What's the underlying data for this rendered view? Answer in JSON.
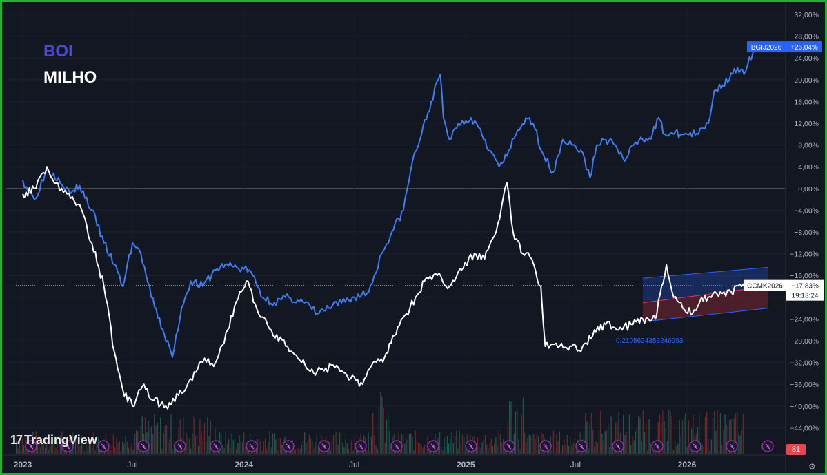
{
  "legend": {
    "boi": "BOI",
    "milho": "MILHO"
  },
  "branding": {
    "logo_text": "TradingView",
    "logo_mark": "17"
  },
  "labels": {
    "bgi": "BGIJ2026",
    "bgi_value": "+26,04%",
    "ccm": "CCMK2026",
    "ccm_value": "−17,83%",
    "countdown": "19:13:24",
    "channel_value": "0.2105624353246993",
    "volume_badge": "81"
  },
  "colors": {
    "background": "#131722",
    "boi": "#3d7ef5",
    "milho": "#ffffff",
    "frame": "#1db232",
    "channel_blue": "#1f3a7a",
    "channel_red": "#5c1f2a"
  },
  "icons": {
    "event_marker": "lightning-icon",
    "settings": "gear-icon"
  },
  "chart_data": {
    "type": "line",
    "x_tick_labels": [
      "2023",
      "Jul",
      "2024",
      "Jul",
      "2025",
      "Jul",
      "2026"
    ],
    "y_tick_labels": [
      "32,00%",
      "28,00%",
      "24,00%",
      "20,00%",
      "16,00%",
      "12,00%",
      "8,00%",
      "4,00%",
      "0,00%",
      "−4,00%",
      "−8,00%",
      "−12,00%",
      "−16,00%",
      "−20,00%",
      "−24,00%",
      "−28,00%",
      "−32,00%",
      "−36,00%",
      "−40,00%",
      "−44,00%"
    ],
    "ylim": [
      -48,
      33
    ],
    "y_scale_percent": true,
    "series": [
      {
        "name": "BGIJ2026",
        "color": "#3d7ef5",
        "points": [
          [
            "2023-01-01",
            1.5
          ],
          [
            "2023-01-20",
            -2
          ],
          [
            "2023-02-10",
            3.5
          ],
          [
            "2023-03-01",
            2
          ],
          [
            "2023-03-20",
            -1
          ],
          [
            "2023-04-05",
            0.5
          ],
          [
            "2023-04-25",
            -4
          ],
          [
            "2023-05-15",
            -10
          ],
          [
            "2023-06-01",
            -14
          ],
          [
            "2023-06-15",
            -18
          ],
          [
            "2023-07-01",
            -10
          ],
          [
            "2023-07-15",
            -12
          ],
          [
            "2023-08-01",
            -20
          ],
          [
            "2023-08-20",
            -26
          ],
          [
            "2023-09-05",
            -31
          ],
          [
            "2023-09-20",
            -22
          ],
          [
            "2023-10-05",
            -17
          ],
          [
            "2023-10-25",
            -18
          ],
          [
            "2023-11-15",
            -15
          ],
          [
            "2023-12-01",
            -14
          ],
          [
            "2023-12-20",
            -14.5
          ],
          [
            "2024-01-10",
            -15
          ],
          [
            "2024-02-01",
            -20
          ],
          [
            "2024-02-20",
            -21
          ],
          [
            "2024-03-15",
            -20
          ],
          [
            "2024-04-10",
            -21
          ],
          [
            "2024-05-01",
            -23
          ],
          [
            "2024-05-20",
            -22
          ],
          [
            "2024-06-10",
            -21
          ],
          [
            "2024-07-01",
            -20
          ],
          [
            "2024-07-25",
            -19
          ],
          [
            "2024-08-15",
            -12
          ],
          [
            "2024-09-01",
            -8
          ],
          [
            "2024-09-20",
            -4
          ],
          [
            "2024-10-05",
            5
          ],
          [
            "2024-10-20",
            10
          ],
          [
            "2024-11-05",
            16
          ],
          [
            "2024-11-20",
            21
          ],
          [
            "2024-11-25",
            13
          ],
          [
            "2024-12-05",
            9
          ],
          [
            "2024-12-20",
            12
          ],
          [
            "2025-01-10",
            13
          ],
          [
            "2025-01-25",
            11
          ],
          [
            "2025-02-10",
            7
          ],
          [
            "2025-02-25",
            4
          ],
          [
            "2025-03-10",
            6
          ],
          [
            "2025-03-25",
            10
          ],
          [
            "2025-04-10",
            13
          ],
          [
            "2025-04-25",
            11
          ],
          [
            "2025-05-10",
            6
          ],
          [
            "2025-05-25",
            3
          ],
          [
            "2025-06-10",
            9
          ],
          [
            "2025-06-25",
            8
          ],
          [
            "2025-07-10",
            7
          ],
          [
            "2025-07-25",
            2
          ],
          [
            "2025-08-05",
            8
          ],
          [
            "2025-08-20",
            9
          ],
          [
            "2025-09-05",
            8
          ],
          [
            "2025-09-20",
            5
          ],
          [
            "2025-10-05",
            8
          ],
          [
            "2025-10-20",
            9
          ],
          [
            "2025-11-05",
            10
          ],
          [
            "2025-11-15",
            13
          ],
          [
            "2025-11-25",
            10
          ],
          [
            "2025-12-10",
            10
          ],
          [
            "2026-01-01",
            10
          ],
          [
            "2026-01-20",
            10
          ],
          [
            "2026-02-05",
            12
          ],
          [
            "2026-02-15",
            18
          ],
          [
            "2026-03-01",
            19
          ],
          [
            "2026-03-20",
            22
          ],
          [
            "2026-04-05",
            21
          ],
          [
            "2026-04-20",
            25
          ],
          [
            "2026-04-28",
            26.04
          ]
        ]
      },
      {
        "name": "CCMK2026",
        "color": "#ffffff",
        "points": [
          [
            "2023-01-01",
            -1
          ],
          [
            "2023-01-20",
            0
          ],
          [
            "2023-02-10",
            4
          ],
          [
            "2023-02-25",
            1
          ],
          [
            "2023-03-15",
            -1
          ],
          [
            "2023-04-05",
            -3
          ],
          [
            "2023-04-25",
            -10
          ],
          [
            "2023-05-15",
            -18
          ],
          [
            "2023-06-01",
            -30
          ],
          [
            "2023-06-15",
            -37
          ],
          [
            "2023-07-01",
            -40
          ],
          [
            "2023-07-20",
            -36
          ],
          [
            "2023-08-05",
            -39
          ],
          [
            "2023-08-25",
            -40
          ],
          [
            "2023-09-15",
            -38
          ],
          [
            "2023-10-05",
            -35
          ],
          [
            "2023-10-25",
            -32
          ],
          [
            "2023-11-15",
            -32
          ],
          [
            "2023-12-05",
            -26
          ],
          [
            "2023-12-25",
            -19
          ],
          [
            "2024-01-05",
            -17
          ],
          [
            "2024-01-25",
            -23
          ],
          [
            "2024-02-15",
            -26
          ],
          [
            "2024-03-10",
            -29
          ],
          [
            "2024-04-05",
            -32
          ],
          [
            "2024-04-25",
            -34
          ],
          [
            "2024-05-15",
            -33
          ],
          [
            "2024-06-05",
            -33
          ],
          [
            "2024-06-25",
            -35
          ],
          [
            "2024-07-15",
            -36
          ],
          [
            "2024-08-01",
            -32
          ],
          [
            "2024-08-20",
            -31
          ],
          [
            "2024-09-05",
            -27
          ],
          [
            "2024-09-25",
            -23
          ],
          [
            "2024-10-10",
            -20
          ],
          [
            "2024-10-25",
            -17
          ],
          [
            "2024-11-15",
            -16
          ],
          [
            "2024-12-05",
            -18
          ],
          [
            "2024-12-25",
            -15
          ],
          [
            "2025-01-15",
            -12
          ],
          [
            "2025-02-01",
            -13
          ],
          [
            "2025-02-20",
            -8
          ],
          [
            "2025-03-10",
            1
          ],
          [
            "2025-03-20",
            -8
          ],
          [
            "2025-04-05",
            -12
          ],
          [
            "2025-04-20",
            -13
          ],
          [
            "2025-05-05",
            -18
          ],
          [
            "2025-05-12",
            -29
          ],
          [
            "2025-06-05",
            -29
          ],
          [
            "2025-06-25",
            -29
          ],
          [
            "2025-07-10",
            -30
          ],
          [
            "2025-08-01",
            -26
          ],
          [
            "2025-08-20",
            -25
          ],
          [
            "2025-09-10",
            -26
          ],
          [
            "2025-10-01",
            -25
          ],
          [
            "2025-10-20",
            -24
          ],
          [
            "2025-11-10",
            -24
          ],
          [
            "2025-11-20",
            -18
          ],
          [
            "2025-11-28",
            -14
          ],
          [
            "2025-12-10",
            -20
          ],
          [
            "2025-12-25",
            -22
          ],
          [
            "2026-01-10",
            -23
          ],
          [
            "2026-01-25",
            -20
          ],
          [
            "2026-02-10",
            -20
          ],
          [
            "2026-02-25",
            -19
          ],
          [
            "2026-03-15",
            -19
          ],
          [
            "2026-04-01",
            -18
          ],
          [
            "2026-04-20",
            -18
          ],
          [
            "2026-04-28",
            -17.83
          ]
        ]
      }
    ],
    "regression_channel": {
      "start": "2025-10-20",
      "end": "2026-05-15",
      "mid_start": -21,
      "mid_end": -18,
      "upper_start": -16.5,
      "upper_end": -14.5,
      "lower_start": -24.5,
      "lower_end": -22
    },
    "volume_series": "per-bar red/green volume histogram at bottom",
    "zero_line": true,
    "crosshair_y": -17.83
  }
}
